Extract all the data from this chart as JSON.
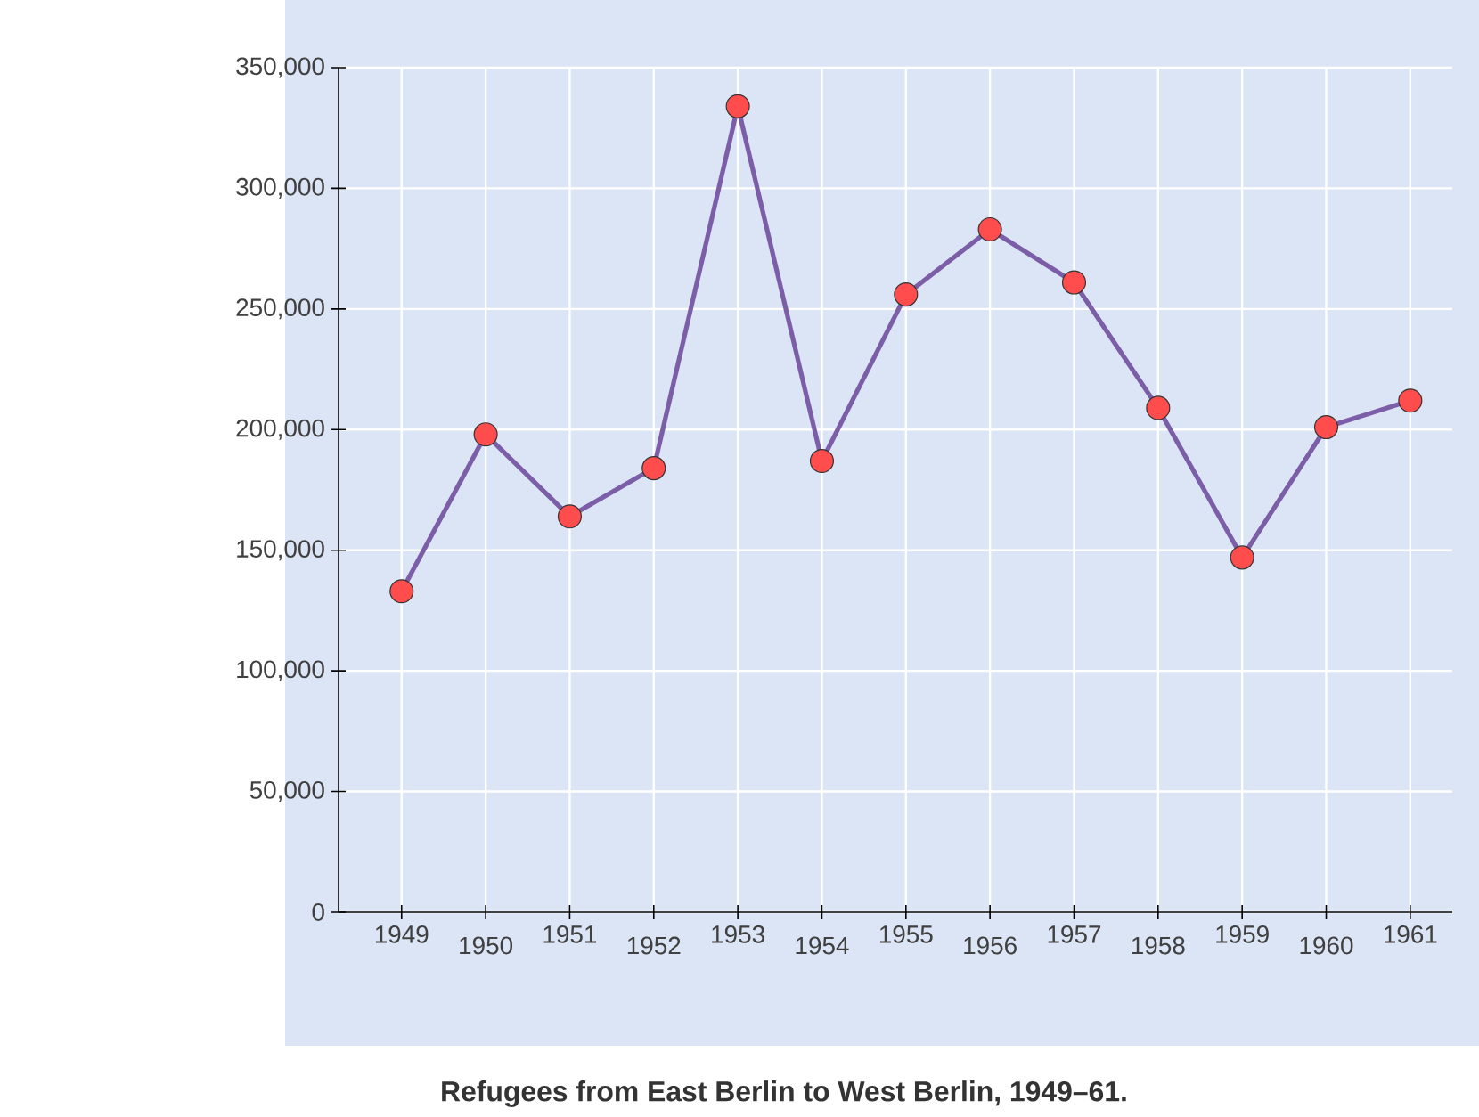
{
  "chart_data": {
    "type": "line",
    "title": "Refugees from East Berlin to West Berlin, 1949–61.",
    "categories": [
      "1949",
      "1950",
      "1951",
      "1952",
      "1953",
      "1954",
      "1955",
      "1956",
      "1957",
      "1958",
      "1959",
      "1960",
      "1961"
    ],
    "series": [
      {
        "color": "#7b5ea7",
        "values": [
          133000,
          198000,
          164000,
          184000,
          334000,
          187000,
          256000,
          283000,
          261000,
          209000,
          147000,
          201000,
          212000
        ]
      }
    ],
    "ylim": [
      0,
      350000
    ],
    "yticks": [
      {
        "value": 0,
        "label": "0"
      },
      {
        "value": 50000,
        "label": "50,000"
      },
      {
        "value": 100000,
        "label": "100,000"
      },
      {
        "value": 150000,
        "label": "150,000"
      },
      {
        "value": 200000,
        "label": "200,000"
      },
      {
        "value": 250000,
        "label": "250,000"
      },
      {
        "value": 300000,
        "label": "300,000"
      },
      {
        "value": 350000,
        "label": "350,000"
      }
    ],
    "grid": true,
    "marker": "circle",
    "line_style": "solid"
  }
}
